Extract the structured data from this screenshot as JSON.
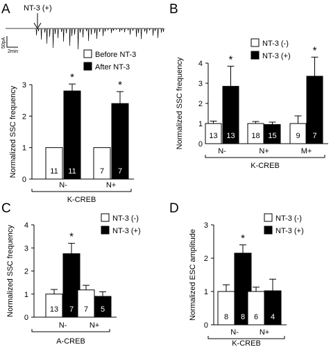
{
  "panels": [
    {
      "letter": "A"
    },
    {
      "letter": "B"
    },
    {
      "letter": "C"
    },
    {
      "letter": "D"
    }
  ],
  "trace": {
    "label": "NT-3 (+)",
    "scale_y": "50pA",
    "scale_x": "2min"
  },
  "colors": {
    "before": "#ffffff",
    "after": "#000000",
    "stroke": "#000000"
  },
  "chart_data": [
    {
      "panel": "A",
      "type": "bar",
      "ylabel": "Normalized SSC frequency",
      "group_label": "K-CREB",
      "ylim": [
        0,
        3
      ],
      "yticks": [
        0,
        1,
        2,
        3
      ],
      "legend_position": "top-right",
      "categories": [
        "N-",
        "N+"
      ],
      "series": [
        {
          "name": "Before NT-3",
          "values": [
            1.0,
            1.0
          ],
          "errors": [
            0,
            0
          ],
          "n": [
            "11",
            "7"
          ]
        },
        {
          "name": "After NT-3",
          "values": [
            2.8,
            2.4
          ],
          "errors": [
            0.22,
            0.38
          ],
          "n": [
            "11",
            "7"
          ]
        }
      ],
      "significance": [
        {
          "category": "N-",
          "series": 1,
          "mark": "*"
        },
        {
          "category": "N+",
          "series": 1,
          "mark": "*"
        }
      ]
    },
    {
      "panel": "B",
      "type": "bar",
      "ylabel": "Normalized SSC frequency",
      "group_label": "K-CREB",
      "ylim": [
        0,
        4
      ],
      "yticks": [
        0,
        1,
        2,
        3,
        4
      ],
      "legend_position": "top-right",
      "categories": [
        "N-",
        "N+",
        "M+"
      ],
      "series": [
        {
          "name": "NT-3 (-)",
          "values": [
            1.0,
            1.0,
            1.0
          ],
          "errors": [
            0.12,
            0.1,
            0.38
          ],
          "n": [
            "13",
            "18",
            "9"
          ]
        },
        {
          "name": "NT-3 (+)",
          "values": [
            2.85,
            0.95,
            3.35
          ],
          "errors": [
            1.0,
            0.12,
            0.95
          ],
          "n": [
            "13",
            "15",
            "7"
          ]
        }
      ],
      "significance": [
        {
          "category": "N-",
          "series": 1,
          "mark": "*"
        },
        {
          "category": "M+",
          "series": 1,
          "mark": "*"
        }
      ]
    },
    {
      "panel": "C",
      "type": "bar",
      "ylabel": "Normalized SSC frequency",
      "group_label": "A-CREB",
      "ylim": [
        0,
        4
      ],
      "yticks": [
        0,
        1,
        2,
        3,
        4
      ],
      "legend_position": "top-right",
      "categories": [
        "N-",
        "N+"
      ],
      "series": [
        {
          "name": "NT-3 (-)",
          "values": [
            1.0,
            1.18
          ],
          "errors": [
            0.2,
            0.2
          ],
          "n": [
            "13",
            "7"
          ]
        },
        {
          "name": "NT-3 (+)",
          "values": [
            2.75,
            0.9
          ],
          "errors": [
            0.45,
            0.2
          ],
          "n": [
            "7",
            "5"
          ]
        }
      ],
      "significance": [
        {
          "category": "N-",
          "series": 1,
          "mark": "*"
        }
      ]
    },
    {
      "panel": "D",
      "type": "bar",
      "ylabel": "Normalized ESC amplitude",
      "group_label": "K-CREB",
      "ylim": [
        0,
        3
      ],
      "yticks": [
        0,
        1,
        2,
        3
      ],
      "legend_position": "top-right",
      "categories": [
        "N-",
        "N+"
      ],
      "series": [
        {
          "name": "NT-3 (-)",
          "values": [
            1.0,
            1.0
          ],
          "errors": [
            0.2,
            0.13
          ],
          "n": [
            "8",
            "6"
          ]
        },
        {
          "name": "NT-3 (+)",
          "values": [
            2.15,
            1.02
          ],
          "errors": [
            0.25,
            0.35
          ],
          "n": [
            "8",
            "4"
          ]
        }
      ],
      "significance": [
        {
          "category": "N-",
          "series": 1,
          "mark": "*"
        }
      ]
    }
  ]
}
